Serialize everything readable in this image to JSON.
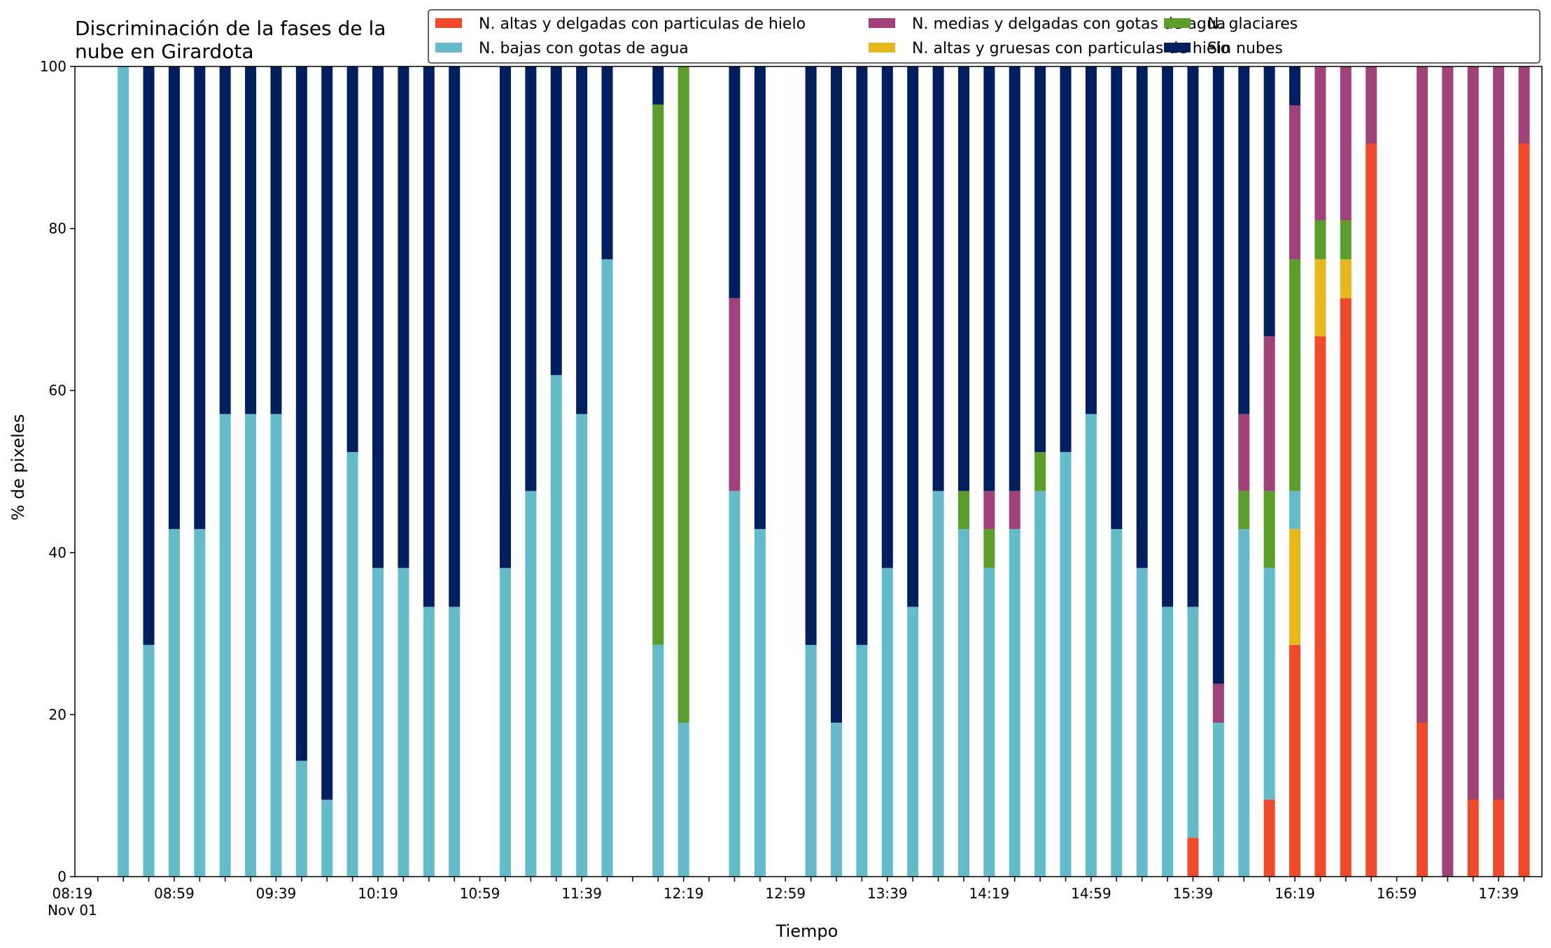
{
  "chart_data": {
    "type": "bar",
    "stacked": true,
    "title_lines": [
      "Discriminación de la fases de la",
      "nube en Girardota"
    ],
    "xlabel": "Tiempo",
    "ylabel": "% de pixeles",
    "ylim": [
      0,
      100
    ],
    "yticks": [
      "0",
      "20",
      "40",
      "60",
      "80",
      "100"
    ],
    "xrange_minutes": [
      500,
      1076
    ],
    "xtick_labels": [
      {
        "t": 499,
        "label": "08:19",
        "sublabel": "Nov 01"
      },
      {
        "t": 539,
        "label": "08:59"
      },
      {
        "t": 579,
        "label": "09:39"
      },
      {
        "t": 619,
        "label": "10:19"
      },
      {
        "t": 659,
        "label": "10:59"
      },
      {
        "t": 699,
        "label": "11:39"
      },
      {
        "t": 739,
        "label": "12:19"
      },
      {
        "t": 779,
        "label": "12:59"
      },
      {
        "t": 819,
        "label": "13:39"
      },
      {
        "t": 859,
        "label": "14:19"
      },
      {
        "t": 899,
        "label": "14:59"
      },
      {
        "t": 939,
        "label": "15:39"
      },
      {
        "t": 979,
        "label": "16:19"
      },
      {
        "t": 1019,
        "label": "16:59"
      },
      {
        "t": 1059,
        "label": "17:39"
      }
    ],
    "minor_tick_step_minutes": 10,
    "grid": false,
    "legend_position": "top-right",
    "series": [
      {
        "key": "altas_delgadas",
        "name": "N. altas y delgadas con particulas de hielo",
        "color": "#f04a2a"
      },
      {
        "key": "altas_gruesas",
        "name": "N. altas y gruesas con particulas de hielo",
        "color": "#e6b81c"
      },
      {
        "key": "bajas_agua",
        "name": "N. bajas con gotas de agua",
        "color": "#64bcca"
      },
      {
        "key": "glaciares",
        "name": "N. glaciares",
        "color": "#5c9e2c"
      },
      {
        "key": "medias_agua",
        "name": "N. medias y delgadas con gotas de agua",
        "color": "#a0417a"
      },
      {
        "key": "sin_nubes",
        "name": "Sin nubes",
        "color": "#001f60"
      }
    ],
    "legend_order": [
      "altas_delgadas",
      "bajas_agua",
      "medias_agua",
      "altas_gruesas",
      "glaciares",
      "sin_nubes"
    ],
    "stack_order": [
      "altas_delgadas",
      "altas_gruesas",
      "bajas_agua",
      "glaciares",
      "medias_agua",
      "sin_nubes"
    ],
    "bars": [
      {
        "t": 519,
        "bajas_agua": 100
      },
      {
        "t": 529,
        "bajas_agua": 28.6,
        "sin_nubes": 71.4
      },
      {
        "t": 539,
        "bajas_agua": 42.9,
        "sin_nubes": 57.1
      },
      {
        "t": 549,
        "bajas_agua": 42.9,
        "sin_nubes": 57.1
      },
      {
        "t": 559,
        "bajas_agua": 57.1,
        "sin_nubes": 42.9
      },
      {
        "t": 569,
        "bajas_agua": 57.1,
        "sin_nubes": 42.9
      },
      {
        "t": 579,
        "bajas_agua": 57.1,
        "sin_nubes": 42.9
      },
      {
        "t": 589,
        "bajas_agua": 14.3,
        "sin_nubes": 85.7
      },
      {
        "t": 599,
        "bajas_agua": 9.5,
        "sin_nubes": 90.5
      },
      {
        "t": 609,
        "bajas_agua": 52.4,
        "sin_nubes": 47.6
      },
      {
        "t": 619,
        "bajas_agua": 38.1,
        "sin_nubes": 61.9
      },
      {
        "t": 629,
        "bajas_agua": 38.1,
        "sin_nubes": 61.9
      },
      {
        "t": 639,
        "bajas_agua": 33.3,
        "sin_nubes": 66.7
      },
      {
        "t": 649,
        "bajas_agua": 33.3,
        "sin_nubes": 66.7
      },
      {
        "t": 669,
        "bajas_agua": 38.1,
        "sin_nubes": 61.9
      },
      {
        "t": 679,
        "bajas_agua": 47.6,
        "sin_nubes": 52.4
      },
      {
        "t": 689,
        "bajas_agua": 61.9,
        "sin_nubes": 38.1
      },
      {
        "t": 699,
        "bajas_agua": 57.1,
        "sin_nubes": 42.9
      },
      {
        "t": 709,
        "bajas_agua": 76.2,
        "sin_nubes": 23.8
      },
      {
        "t": 729,
        "bajas_agua": 28.6,
        "glaciares": 66.7,
        "sin_nubes": 4.7
      },
      {
        "t": 739,
        "bajas_agua": 19.0,
        "glaciares": 81.0
      },
      {
        "t": 759,
        "bajas_agua": 47.6,
        "medias_agua": 23.8,
        "sin_nubes": 28.6
      },
      {
        "t": 769,
        "bajas_agua": 42.9,
        "sin_nubes": 57.1
      },
      {
        "t": 789,
        "bajas_agua": 28.6,
        "sin_nubes": 71.4
      },
      {
        "t": 799,
        "bajas_agua": 19.0,
        "sin_nubes": 81.0
      },
      {
        "t": 809,
        "bajas_agua": 28.6,
        "sin_nubes": 71.4
      },
      {
        "t": 819,
        "bajas_agua": 38.1,
        "sin_nubes": 61.9
      },
      {
        "t": 829,
        "bajas_agua": 33.3,
        "sin_nubes": 66.7
      },
      {
        "t": 839,
        "bajas_agua": 47.6,
        "sin_nubes": 52.4
      },
      {
        "t": 849,
        "bajas_agua": 42.9,
        "glaciares": 4.7,
        "sin_nubes": 52.4
      },
      {
        "t": 859,
        "bajas_agua": 38.1,
        "glaciares": 4.8,
        "medias_agua": 4.7,
        "sin_nubes": 52.4
      },
      {
        "t": 869,
        "bajas_agua": 42.9,
        "medias_agua": 4.7,
        "sin_nubes": 52.4
      },
      {
        "t": 879,
        "bajas_agua": 47.6,
        "glaciares": 4.8,
        "sin_nubes": 47.6
      },
      {
        "t": 889,
        "bajas_agua": 52.4,
        "sin_nubes": 47.6
      },
      {
        "t": 899,
        "bajas_agua": 57.1,
        "sin_nubes": 42.9
      },
      {
        "t": 909,
        "bajas_agua": 42.9,
        "sin_nubes": 57.1
      },
      {
        "t": 919,
        "bajas_agua": 38.1,
        "sin_nubes": 61.9
      },
      {
        "t": 929,
        "bajas_agua": 33.3,
        "sin_nubes": 66.7
      },
      {
        "t": 939,
        "altas_delgadas": 4.8,
        "bajas_agua": 28.5,
        "sin_nubes": 66.7
      },
      {
        "t": 949,
        "bajas_agua": 19.0,
        "medias_agua": 4.8,
        "sin_nubes": 76.2
      },
      {
        "t": 959,
        "bajas_agua": 42.9,
        "glaciares": 4.7,
        "medias_agua": 9.5,
        "sin_nubes": 42.9
      },
      {
        "t": 969,
        "altas_delgadas": 9.5,
        "bajas_agua": 28.6,
        "glaciares": 9.5,
        "medias_agua": 19.1,
        "sin_nubes": 33.3
      },
      {
        "t": 979,
        "altas_delgadas": 28.6,
        "altas_gruesas": 14.3,
        "bajas_agua": 4.7,
        "glaciares": 28.6,
        "medias_agua": 19.0,
        "sin_nubes": 4.8
      },
      {
        "t": 989,
        "altas_delgadas": 66.7,
        "altas_gruesas": 9.5,
        "glaciares": 4.8,
        "medias_agua": 19.0
      },
      {
        "t": 999,
        "altas_delgadas": 71.4,
        "altas_gruesas": 4.8,
        "glaciares": 4.8,
        "medias_agua": 19.0
      },
      {
        "t": 1009,
        "altas_delgadas": 90.5,
        "medias_agua": 9.5
      },
      {
        "t": 1029,
        "altas_delgadas": 19.0,
        "medias_agua": 81.0
      },
      {
        "t": 1039,
        "medias_agua": 100
      },
      {
        "t": 1049,
        "altas_delgadas": 9.5,
        "medias_agua": 90.5
      },
      {
        "t": 1059,
        "altas_delgadas": 9.5,
        "medias_agua": 90.5
      },
      {
        "t": 1069,
        "altas_delgadas": 90.5,
        "medias_agua": 9.5
      }
    ]
  }
}
